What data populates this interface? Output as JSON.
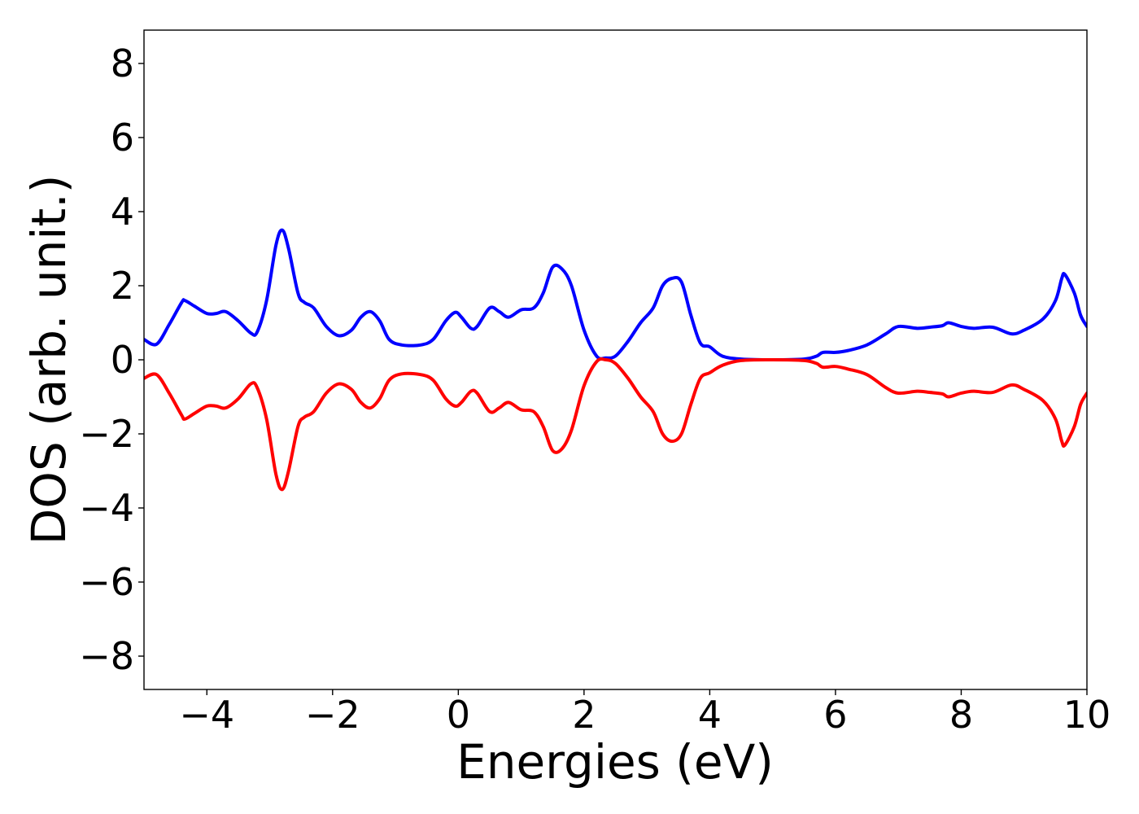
{
  "chart_data": {
    "type": "line",
    "xlabel": "Energies (eV)",
    "ylabel": "DOS (arb. unit.)",
    "xlim": [
      -5,
      10
    ],
    "ylim": [
      -8.9,
      8.9
    ],
    "xticks": [
      -4,
      -2,
      0,
      2,
      4,
      6,
      8,
      10
    ],
    "xtick_labels": [
      "−4",
      "−2",
      "0",
      "2",
      "4",
      "6",
      "8",
      "10"
    ],
    "yticks": [
      8,
      6,
      4,
      2,
      0,
      -2,
      -4,
      -6,
      -8
    ],
    "ytick_labels": [
      "8",
      "6",
      "4",
      "2",
      "0",
      "−2",
      "−4",
      "−6",
      "−8"
    ],
    "grid": false,
    "series": [
      {
        "color": "#0000ff",
        "points": [
          [
            -5.0,
            0.55
          ],
          [
            -4.8,
            0.42
          ],
          [
            -4.6,
            0.95
          ],
          [
            -4.4,
            1.55
          ],
          [
            -4.35,
            1.6
          ],
          [
            -4.2,
            1.45
          ],
          [
            -4.0,
            1.25
          ],
          [
            -3.85,
            1.25
          ],
          [
            -3.7,
            1.3
          ],
          [
            -3.5,
            1.05
          ],
          [
            -3.3,
            0.72
          ],
          [
            -3.2,
            0.75
          ],
          [
            -3.05,
            1.6
          ],
          [
            -2.9,
            3.1
          ],
          [
            -2.8,
            3.5
          ],
          [
            -2.7,
            3.0
          ],
          [
            -2.55,
            1.8
          ],
          [
            -2.45,
            1.55
          ],
          [
            -2.3,
            1.4
          ],
          [
            -2.1,
            0.9
          ],
          [
            -1.9,
            0.65
          ],
          [
            -1.7,
            0.8
          ],
          [
            -1.55,
            1.15
          ],
          [
            -1.4,
            1.3
          ],
          [
            -1.25,
            1.05
          ],
          [
            -1.1,
            0.55
          ],
          [
            -0.9,
            0.4
          ],
          [
            -0.6,
            0.4
          ],
          [
            -0.4,
            0.55
          ],
          [
            -0.2,
            1.05
          ],
          [
            -0.05,
            1.28
          ],
          [
            0.05,
            1.15
          ],
          [
            0.2,
            0.85
          ],
          [
            0.3,
            0.9
          ],
          [
            0.5,
            1.4
          ],
          [
            0.65,
            1.3
          ],
          [
            0.8,
            1.15
          ],
          [
            1.0,
            1.35
          ],
          [
            1.2,
            1.4
          ],
          [
            1.35,
            1.8
          ],
          [
            1.5,
            2.5
          ],
          [
            1.65,
            2.45
          ],
          [
            1.8,
            2.0
          ],
          [
            2.0,
            0.8
          ],
          [
            2.2,
            0.1
          ],
          [
            2.35,
            0.05
          ],
          [
            2.5,
            0.1
          ],
          [
            2.7,
            0.5
          ],
          [
            2.9,
            1.0
          ],
          [
            3.1,
            1.4
          ],
          [
            3.25,
            2.0
          ],
          [
            3.4,
            2.2
          ],
          [
            3.55,
            2.1
          ],
          [
            3.7,
            1.2
          ],
          [
            3.85,
            0.45
          ],
          [
            4.0,
            0.35
          ],
          [
            4.2,
            0.1
          ],
          [
            4.5,
            0.02
          ],
          [
            5.0,
            0.0
          ],
          [
            5.5,
            0.02
          ],
          [
            5.7,
            0.1
          ],
          [
            5.8,
            0.2
          ],
          [
            6.0,
            0.2
          ],
          [
            6.2,
            0.25
          ],
          [
            6.5,
            0.4
          ],
          [
            6.8,
            0.7
          ],
          [
            7.0,
            0.9
          ],
          [
            7.3,
            0.85
          ],
          [
            7.5,
            0.88
          ],
          [
            7.7,
            0.92
          ],
          [
            7.8,
            1.0
          ],
          [
            8.0,
            0.9
          ],
          [
            8.2,
            0.85
          ],
          [
            8.5,
            0.88
          ],
          [
            8.8,
            0.7
          ],
          [
            9.0,
            0.8
          ],
          [
            9.3,
            1.1
          ],
          [
            9.5,
            1.6
          ],
          [
            9.6,
            2.2
          ],
          [
            9.65,
            2.3
          ],
          [
            9.8,
            1.8
          ],
          [
            9.9,
            1.2
          ],
          [
            10.0,
            0.9
          ]
        ]
      },
      {
        "color": "#ff0000",
        "points": [
          [
            -5.0,
            -0.5
          ],
          [
            -4.8,
            -0.4
          ],
          [
            -4.6,
            -0.9
          ],
          [
            -4.4,
            -1.5
          ],
          [
            -4.35,
            -1.6
          ],
          [
            -4.2,
            -1.45
          ],
          [
            -4.0,
            -1.25
          ],
          [
            -3.85,
            -1.25
          ],
          [
            -3.7,
            -1.3
          ],
          [
            -3.5,
            -1.05
          ],
          [
            -3.3,
            -0.65
          ],
          [
            -3.2,
            -0.75
          ],
          [
            -3.05,
            -1.6
          ],
          [
            -2.9,
            -3.1
          ],
          [
            -2.8,
            -3.5
          ],
          [
            -2.7,
            -3.0
          ],
          [
            -2.55,
            -1.8
          ],
          [
            -2.45,
            -1.55
          ],
          [
            -2.3,
            -1.4
          ],
          [
            -2.1,
            -0.9
          ],
          [
            -1.9,
            -0.65
          ],
          [
            -1.7,
            -0.8
          ],
          [
            -1.55,
            -1.15
          ],
          [
            -1.4,
            -1.3
          ],
          [
            -1.25,
            -1.05
          ],
          [
            -1.1,
            -0.55
          ],
          [
            -0.9,
            -0.38
          ],
          [
            -0.6,
            -0.4
          ],
          [
            -0.4,
            -0.55
          ],
          [
            -0.2,
            -1.05
          ],
          [
            -0.05,
            -1.25
          ],
          [
            0.05,
            -1.15
          ],
          [
            0.2,
            -0.85
          ],
          [
            0.3,
            -0.9
          ],
          [
            0.5,
            -1.4
          ],
          [
            0.65,
            -1.3
          ],
          [
            0.8,
            -1.15
          ],
          [
            1.0,
            -1.35
          ],
          [
            1.2,
            -1.4
          ],
          [
            1.35,
            -1.8
          ],
          [
            1.5,
            -2.45
          ],
          [
            1.65,
            -2.4
          ],
          [
            1.8,
            -1.9
          ],
          [
            2.0,
            -0.7
          ],
          [
            2.2,
            -0.05
          ],
          [
            2.35,
            0.0
          ],
          [
            2.5,
            -0.1
          ],
          [
            2.7,
            -0.5
          ],
          [
            2.9,
            -1.0
          ],
          [
            3.1,
            -1.4
          ],
          [
            3.25,
            -2.0
          ],
          [
            3.4,
            -2.2
          ],
          [
            3.55,
            -2.0
          ],
          [
            3.7,
            -1.2
          ],
          [
            3.85,
            -0.5
          ],
          [
            4.0,
            -0.35
          ],
          [
            4.2,
            -0.15
          ],
          [
            4.5,
            -0.02
          ],
          [
            5.0,
            0.0
          ],
          [
            5.5,
            -0.02
          ],
          [
            5.7,
            -0.1
          ],
          [
            5.8,
            -0.2
          ],
          [
            6.0,
            -0.18
          ],
          [
            6.2,
            -0.25
          ],
          [
            6.5,
            -0.4
          ],
          [
            6.8,
            -0.75
          ],
          [
            7.0,
            -0.9
          ],
          [
            7.3,
            -0.85
          ],
          [
            7.5,
            -0.88
          ],
          [
            7.7,
            -0.92
          ],
          [
            7.8,
            -1.0
          ],
          [
            8.0,
            -0.9
          ],
          [
            8.2,
            -0.85
          ],
          [
            8.5,
            -0.88
          ],
          [
            8.8,
            -0.68
          ],
          [
            9.0,
            -0.8
          ],
          [
            9.3,
            -1.1
          ],
          [
            9.5,
            -1.6
          ],
          [
            9.6,
            -2.2
          ],
          [
            9.65,
            -2.3
          ],
          [
            9.8,
            -1.8
          ],
          [
            9.9,
            -1.2
          ],
          [
            10.0,
            -0.9
          ]
        ]
      }
    ]
  }
}
